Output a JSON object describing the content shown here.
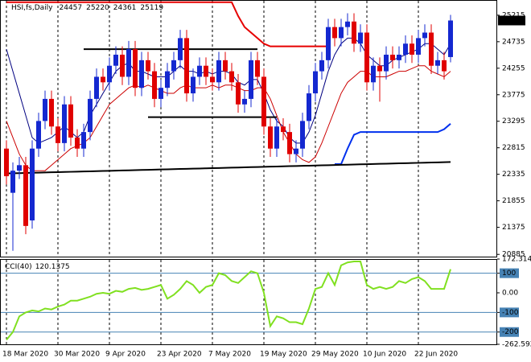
{
  "chart_data": [
    {
      "type": "candlestick",
      "title": "HSI,fs,Daily",
      "categories": [
        "18 Mar 2020",
        null,
        null,
        null,
        null,
        null,
        null,
        null,
        "30 Mar 2020",
        null,
        null,
        null,
        null,
        null,
        null,
        null,
        "9 Apr 2020",
        null,
        null,
        null,
        null,
        null,
        null,
        null,
        "23 Apr 2020",
        null,
        null,
        null,
        null,
        null,
        null,
        null,
        "7 May 2020",
        null,
        null,
        null,
        null,
        null,
        null,
        null,
        "19 May 2020",
        null,
        null,
        null,
        null,
        null,
        null,
        null,
        "29 May 2020",
        null,
        null,
        null,
        null,
        null,
        null,
        null,
        "10 Jun 2020",
        null,
        null,
        null,
        null,
        null,
        null,
        null,
        "22 Jun 2020",
        null,
        null,
        null,
        null,
        null
      ],
      "open": [
        22800,
        22000,
        22400,
        22500,
        21500,
        22800,
        23300,
        23700,
        23200,
        22900,
        23600,
        23000,
        22800,
        23100,
        23700,
        24100,
        24000,
        24300,
        24500,
        24100,
        24600,
        23900,
        24400,
        24200,
        23700,
        23900,
        24200,
        24400,
        24800,
        23800,
        24100,
        24300,
        24100,
        24000,
        24400,
        24200,
        24000,
        23600,
        23700,
        24400,
        24100,
        23200,
        22800,
        23200,
        23100,
        22700,
        22800,
        23300,
        23800,
        24200,
        24400,
        25000,
        24800,
        25000,
        25100,
        24700,
        24900,
        24000,
        24300,
        24200,
        24500,
        24400,
        24500,
        24700,
        24500,
        24800,
        24900,
        24300,
        24400,
        24457
      ],
      "high": [
        22950,
        22550,
        22650,
        22650,
        22950,
        23450,
        23850,
        23850,
        23350,
        23750,
        23750,
        23150,
        23250,
        23850,
        24250,
        24250,
        24450,
        24650,
        24650,
        24750,
        24750,
        24550,
        24550,
        24350,
        24050,
        24350,
        24550,
        24950,
        24950,
        24250,
        24450,
        24450,
        24250,
        24550,
        24550,
        24350,
        24150,
        23850,
        24550,
        24550,
        24250,
        23350,
        23350,
        23350,
        23250,
        22950,
        23450,
        23950,
        24350,
        24550,
        25150,
        25150,
        25150,
        25250,
        25250,
        25050,
        25050,
        24450,
        24450,
        24650,
        24650,
        24650,
        24850,
        24850,
        24950,
        25050,
        25050,
        24550,
        24550,
        25220
      ],
      "low": [
        22150,
        20950,
        22250,
        21250,
        21350,
        22650,
        23150,
        23050,
        22750,
        22750,
        22850,
        22650,
        22650,
        22950,
        23550,
        23850,
        23850,
        24150,
        23950,
        23950,
        23750,
        23750,
        24050,
        23550,
        23550,
        23750,
        24050,
        24250,
        23650,
        23650,
        23950,
        23950,
        23850,
        23850,
        24050,
        23850,
        23450,
        23450,
        23550,
        23950,
        23050,
        22650,
        22650,
        22950,
        22550,
        22550,
        22650,
        23150,
        23650,
        24050,
        24250,
        24650,
        24650,
        24850,
        24550,
        24550,
        23850,
        23850,
        23650,
        24050,
        24250,
        24250,
        24350,
        24350,
        24350,
        24650,
        24150,
        24150,
        24050,
        24361
      ],
      "close": [
        22300,
        22400,
        22500,
        21400,
        22800,
        23300,
        23700,
        23200,
        22900,
        23600,
        23000,
        22800,
        23100,
        23700,
        24100,
        24000,
        24300,
        24500,
        24100,
        24600,
        23900,
        24400,
        24200,
        23700,
        23900,
        24200,
        24400,
        24800,
        23800,
        24100,
        24300,
        24100,
        24000,
        24400,
        24200,
        24000,
        23600,
        23700,
        24400,
        24100,
        23200,
        22800,
        23200,
        23100,
        22700,
        22800,
        23300,
        23800,
        24200,
        24400,
        25000,
        24800,
        25000,
        25100,
        24700,
        24900,
        24000,
        24300,
        24200,
        24500,
        24400,
        24500,
        24700,
        24500,
        24800,
        24900,
        24300,
        24400,
        24200,
        25119
      ],
      "up_color": "#1428d0",
      "down_color": "#e00000",
      "series": [
        {
          "color": "#000080",
          "width": 1,
          "values": [
            24600,
            24200,
            23800,
            23400,
            23000,
            22900,
            22950,
            23000,
            23100,
            23200,
            23100,
            23000,
            23100,
            23400,
            23600,
            23800,
            24000,
            24200,
            24300,
            24350,
            24200,
            24200,
            24150,
            24100,
            24100,
            24100,
            24200,
            24300,
            24200,
            24200,
            24150,
            24200,
            24150,
            24200,
            24200,
            24150,
            24000,
            23950,
            24050,
            24050,
            23800,
            23500,
            23300,
            23200,
            23000,
            22900,
            22900,
            23100,
            23400,
            23800,
            24200,
            24500,
            24700,
            24800,
            24800,
            24700,
            24500,
            24400,
            24300,
            24300,
            24400,
            24450,
            24500,
            24550,
            24600,
            24700,
            24700,
            24600,
            24500,
            24700
          ]
        },
        {
          "color": "#cc0000",
          "width": 1,
          "values": [
            23300,
            23000,
            22700,
            22500,
            22400,
            22400,
            22400,
            22500,
            22600,
            22700,
            22800,
            22850,
            22900,
            23000,
            23200,
            23400,
            23600,
            23700,
            23800,
            23900,
            23950,
            23900,
            23950,
            23900,
            23850,
            23800,
            23800,
            23900,
            23950,
            23900,
            23900,
            23900,
            23950,
            23900,
            23950,
            23950,
            23900,
            23850,
            23850,
            23900,
            23900,
            23700,
            23400,
            23100,
            22900,
            22700,
            22600,
            22550,
            22650,
            22900,
            23200,
            23500,
            23800,
            24000,
            24100,
            24200,
            24200,
            24100,
            24100,
            24100,
            24150,
            24200,
            24200,
            24250,
            24300,
            24300,
            24200,
            24150,
            24100,
            24200
          ]
        },
        {
          "color": "#e60000",
          "width": 2,
          "values": [
            25450,
            25450,
            25450,
            25450,
            25450,
            25450,
            25450,
            25450,
            25450,
            25450,
            25450,
            25450,
            25450,
            25450,
            25450,
            25450,
            25450,
            25450,
            25450,
            25450,
            25450,
            25450,
            25450,
            25450,
            25450,
            25450,
            25450,
            25450,
            25450,
            25450,
            25450,
            25450,
            25450,
            25450,
            25450,
            25450,
            25200,
            25000,
            24900,
            24800,
            24700,
            24650,
            24650,
            24650,
            24650,
            24650,
            24650,
            24650,
            24650,
            24650,
            24650,
            null,
            null,
            null,
            null,
            null,
            null,
            null,
            null,
            null,
            null,
            null,
            null,
            null,
            null,
            null,
            null,
            null,
            null,
            null
          ]
        },
        {
          "color": "#0030ee",
          "width": 2,
          "values": [
            null,
            null,
            null,
            null,
            null,
            null,
            null,
            null,
            null,
            null,
            null,
            null,
            null,
            null,
            null,
            null,
            null,
            null,
            null,
            null,
            null,
            null,
            null,
            null,
            null,
            null,
            null,
            null,
            null,
            null,
            null,
            null,
            null,
            null,
            null,
            null,
            null,
            null,
            null,
            null,
            null,
            null,
            null,
            null,
            null,
            null,
            null,
            null,
            null,
            null,
            null,
            22520,
            22520,
            22800,
            23050,
            23100,
            23100,
            23100,
            23100,
            23100,
            23100,
            23100,
            23100,
            23100,
            23100,
            23100,
            23100,
            23100,
            23150,
            23250
          ]
        },
        {
          "color": "#000000",
          "width": 2,
          "values": [
            22350,
            22353,
            22356,
            22359,
            22362,
            22365,
            22368,
            22371,
            22374,
            22377,
            22380,
            22383,
            22386,
            22389,
            22392,
            22395,
            22398,
            22401,
            22404,
            22407,
            22410,
            22413,
            22416,
            22419,
            22422,
            22425,
            22428,
            22431,
            22434,
            22437,
            22440,
            22443,
            22446,
            22449,
            22452,
            22455,
            22458,
            22461,
            22464,
            22467,
            22470,
            22473,
            22476,
            22479,
            22482,
            22485,
            22488,
            22491,
            22494,
            22497,
            22500,
            22503,
            22506,
            22509,
            22512,
            22515,
            22518,
            22521,
            22524,
            22527,
            22530,
            22533,
            22536,
            22539,
            22542,
            22545,
            22548,
            22551,
            22554,
            22557
          ]
        },
        {
          "color": "#000000",
          "width": 2,
          "values": [
            null,
            null,
            null,
            null,
            null,
            null,
            null,
            null,
            null,
            null,
            null,
            null,
            24600,
            24600,
            24600,
            24600,
            24600,
            24600,
            24600,
            24600,
            24600,
            24600,
            24600,
            24600,
            24600,
            24600,
            24600,
            24600,
            24600,
            24600,
            24600,
            24600,
            24600,
            24600,
            24600,
            24600,
            24600,
            24600,
            24600,
            24600,
            null,
            null,
            null,
            null,
            null,
            null,
            null,
            null,
            null,
            null,
            null,
            null,
            null,
            null,
            null,
            null,
            null,
            null,
            null,
            null,
            null,
            null,
            null,
            null,
            null,
            null,
            null,
            null,
            null,
            null
          ]
        },
        {
          "color": "#000000",
          "width": 2,
          "values": [
            null,
            null,
            null,
            null,
            null,
            null,
            null,
            null,
            null,
            null,
            null,
            null,
            null,
            null,
            null,
            null,
            null,
            null,
            null,
            null,
            null,
            null,
            23370,
            23370,
            23370,
            23370,
            23370,
            23370,
            23370,
            23370,
            23370,
            23370,
            23370,
            23370,
            23370,
            23370,
            23370,
            23370,
            23370,
            23370,
            23370,
            23370,
            23370,
            null,
            null,
            null,
            null,
            null,
            null,
            null,
            null,
            null,
            null,
            null,
            null,
            null,
            null,
            null,
            null,
            null,
            null,
            null,
            null,
            null,
            null,
            null,
            null,
            null,
            null,
            null
          ]
        }
      ],
      "ylim": [
        20830,
        25490
      ],
      "yticks": [
        25215,
        24735,
        24255,
        23775,
        23295,
        22815,
        22335,
        21855,
        21375,
        20885
      ]
    },
    {
      "type": "line",
      "title": "CCI(40)",
      "color": "#80e020",
      "level_color": "#4682b4",
      "values": [
        -240,
        -200,
        -120,
        -100,
        -90,
        -95,
        -80,
        -85,
        -70,
        -60,
        -40,
        -40,
        -30,
        -20,
        -5,
        0,
        -5,
        10,
        5,
        20,
        25,
        15,
        20,
        30,
        40,
        -30,
        -10,
        20,
        60,
        40,
        0,
        30,
        40,
        100,
        90,
        60,
        50,
        80,
        110,
        100,
        0,
        -170,
        -120,
        -130,
        -150,
        -150,
        -160,
        -80,
        20,
        30,
        100,
        40,
        140,
        155,
        160,
        160,
        40,
        20,
        30,
        20,
        30,
        60,
        50,
        70,
        80,
        60,
        20,
        20,
        20,
        120.1375
      ],
      "levels": [
        100,
        -100,
        -200
      ],
      "ylim": [
        -262.5921,
        172.3149
      ],
      "yticks": [
        172.3149,
        100,
        {
          "value": 0,
          "label": "0.00"
        },
        -100,
        -200,
        -262.5921
      ]
    }
  ]
}
